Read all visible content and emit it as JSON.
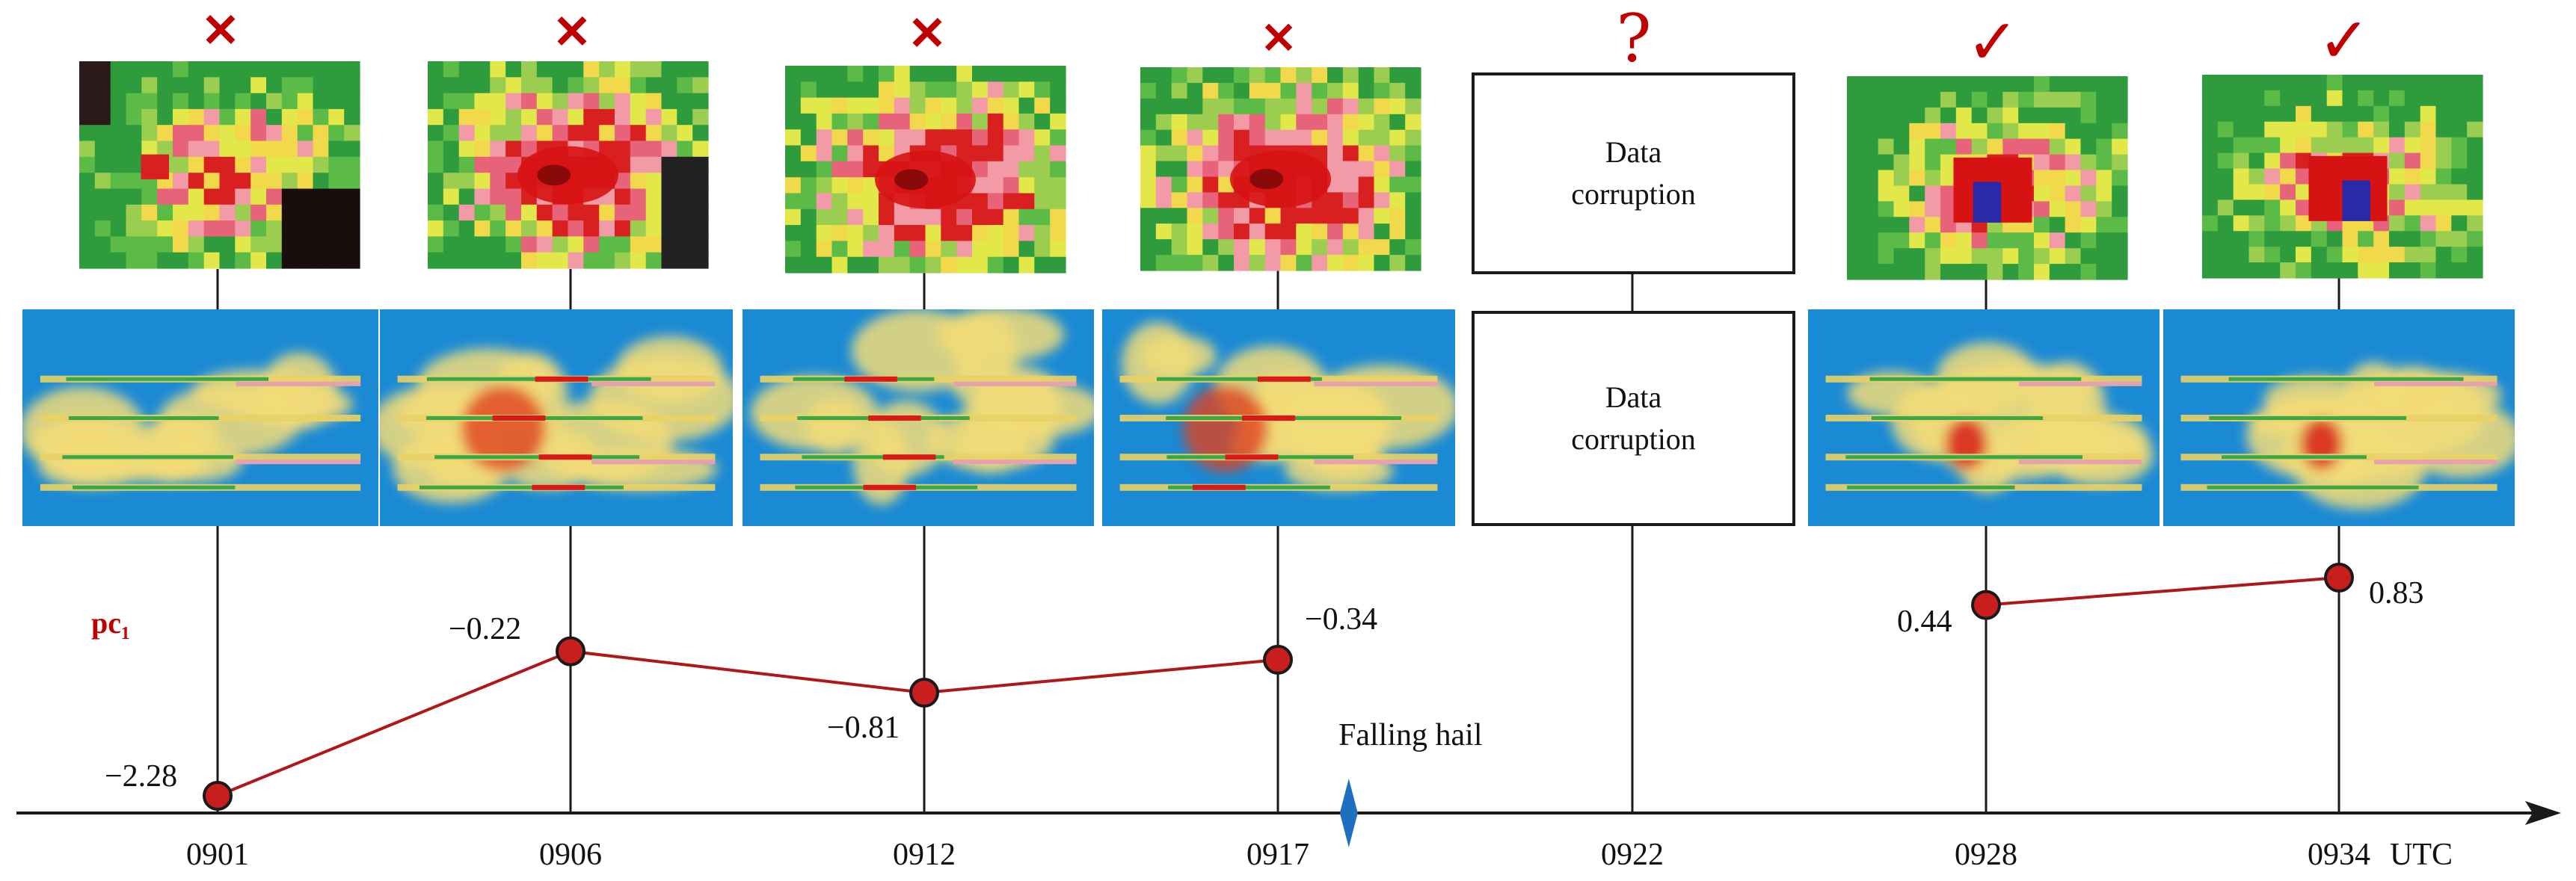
{
  "colors": {
    "accent_red": "#c00000",
    "line": "#1a1a1a",
    "radar_bg": "#1a8ad4",
    "series_line": "#b01818",
    "point_fill": "#c81e1e",
    "hail_marker": "#1f6fc0"
  },
  "times": [
    "0901",
    "0906",
    "0912",
    "0917",
    "0922",
    "0928",
    "0934"
  ],
  "utc_label": "UTC",
  "status_marks": [
    "✕",
    "✕",
    "✕",
    "✕",
    "?",
    "✓",
    "✓"
  ],
  "status_meaning": [
    "cross",
    "cross",
    "cross",
    "cross",
    "question",
    "check",
    "check"
  ],
  "corruption_text": "Data\ncorruption",
  "corruption_index": 4,
  "hail_label": "Falling hail",
  "hail_time": "0918",
  "chart_data": {
    "type": "line",
    "series": [
      {
        "name": "pc₁",
        "x": [
          "0901",
          "0906",
          "0912",
          "0917",
          "0928",
          "0934"
        ],
        "values": [
          -2.28,
          -0.22,
          -0.81,
          -0.34,
          0.44,
          0.83
        ],
        "labels": [
          "−2.28",
          "−0.22",
          "−0.81",
          "−0.34",
          "0.44",
          "0.83"
        ],
        "segments": [
          [
            0,
            1,
            2,
            3
          ],
          [
            4,
            5
          ]
        ]
      }
    ]
  }
}
